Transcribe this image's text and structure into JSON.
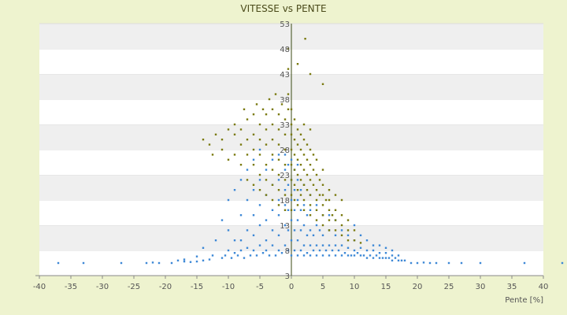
{
  "chart_data": {
    "type": "scatter",
    "title": "VITESSE vs PENTE",
    "xlabel": "Pente [%]",
    "ylabel": "",
    "xlim": [
      -40,
      40
    ],
    "ylim": [
      3,
      53
    ],
    "x_ticks": [
      "-40",
      "-35",
      "-30",
      "-25",
      "-20",
      "-15",
      "-10",
      "-5",
      "0",
      "5",
      "10",
      "15",
      "20",
      "25",
      "30",
      "35",
      "40"
    ],
    "y_ticks": [
      "3",
      "8",
      "13",
      "18",
      "23",
      "28",
      "33",
      "38",
      "43",
      "48",
      "53"
    ],
    "grid": "horizontal-bands",
    "legend": "none",
    "series": [
      {
        "color": "#3d88d6",
        "points": [
          [
            -37,
            5.5
          ],
          [
            -33,
            5.5
          ],
          [
            -27,
            5.5
          ],
          [
            -23,
            5.5
          ],
          [
            -22,
            5.6
          ],
          [
            -21,
            5.5
          ],
          [
            -19,
            5.5
          ],
          [
            -18,
            6
          ],
          [
            -17,
            5.8
          ],
          [
            -17,
            6.2
          ],
          [
            -16,
            5.7
          ],
          [
            -15,
            5.8
          ],
          [
            -15,
            6.8
          ],
          [
            -14,
            6
          ],
          [
            -14,
            8.5
          ],
          [
            -13,
            6.2
          ],
          [
            -12.5,
            7
          ],
          [
            -12,
            10
          ],
          [
            -11,
            6.5
          ],
          [
            -11,
            14
          ],
          [
            -10.5,
            7
          ],
          [
            -10,
            8
          ],
          [
            -10,
            12
          ],
          [
            -10,
            18
          ],
          [
            -9.5,
            6.5
          ],
          [
            -9,
            7.5
          ],
          [
            -9,
            10
          ],
          [
            -9,
            20
          ],
          [
            -8.5,
            7
          ],
          [
            -8,
            8
          ],
          [
            -8,
            10
          ],
          [
            -8,
            15
          ],
          [
            -8,
            22
          ],
          [
            -7.5,
            6.5
          ],
          [
            -7,
            8.5
          ],
          [
            -7,
            12
          ],
          [
            -7,
            18
          ],
          [
            -7,
            24
          ],
          [
            -6.5,
            7
          ],
          [
            -6,
            8
          ],
          [
            -6,
            11
          ],
          [
            -6,
            15
          ],
          [
            -6,
            20
          ],
          [
            -6,
            26
          ],
          [
            -5.5,
            7
          ],
          [
            -5,
            9
          ],
          [
            -5,
            13
          ],
          [
            -5,
            17
          ],
          [
            -5,
            22
          ],
          [
            -5,
            28
          ],
          [
            -4.5,
            7.5
          ],
          [
            -4,
            8
          ],
          [
            -4,
            10
          ],
          [
            -4,
            14
          ],
          [
            -4,
            19
          ],
          [
            -4,
            24
          ],
          [
            -3.5,
            7
          ],
          [
            -3,
            9
          ],
          [
            -3,
            12
          ],
          [
            -3,
            16
          ],
          [
            -3,
            21
          ],
          [
            -3,
            26
          ],
          [
            -2.5,
            7
          ],
          [
            -2,
            8
          ],
          [
            -2,
            11
          ],
          [
            -2,
            15
          ],
          [
            -2,
            18
          ],
          [
            -2,
            22
          ],
          [
            -2,
            27
          ],
          [
            -1.5,
            7.5
          ],
          [
            -1,
            9
          ],
          [
            -1,
            13
          ],
          [
            -1,
            17
          ],
          [
            -1,
            20
          ],
          [
            -1,
            24
          ],
          [
            -1,
            27
          ],
          [
            -0.5,
            8
          ],
          [
            -0.5,
            12
          ],
          [
            -0.5,
            16
          ],
          [
            -0.5,
            21
          ],
          [
            -0.5,
            25
          ],
          [
            0,
            7
          ],
          [
            0,
            10
          ],
          [
            0,
            14
          ],
          [
            0,
            18
          ],
          [
            0,
            22
          ],
          [
            0,
            26
          ],
          [
            0.5,
            8
          ],
          [
            0.5,
            12
          ],
          [
            0.5,
            16
          ],
          [
            0.5,
            20
          ],
          [
            0.5,
            24
          ],
          [
            1,
            7
          ],
          [
            1,
            10
          ],
          [
            1,
            14
          ],
          [
            1,
            18
          ],
          [
            1,
            22
          ],
          [
            1,
            25
          ],
          [
            1.5,
            8
          ],
          [
            1.5,
            12
          ],
          [
            1.5,
            16
          ],
          [
            1.5,
            20
          ],
          [
            2,
            7
          ],
          [
            2,
            9
          ],
          [
            2,
            13
          ],
          [
            2,
            17
          ],
          [
            2,
            21
          ],
          [
            2.5,
            7.5
          ],
          [
            2.5,
            11
          ],
          [
            2.5,
            15
          ],
          [
            3,
            7
          ],
          [
            3,
            9
          ],
          [
            3,
            12
          ],
          [
            3,
            16
          ],
          [
            3,
            19
          ],
          [
            3.5,
            8
          ],
          [
            3.5,
            11
          ],
          [
            4,
            7
          ],
          [
            4,
            9
          ],
          [
            4,
            13
          ],
          [
            4,
            17
          ],
          [
            4.5,
            8
          ],
          [
            4.5,
            12
          ],
          [
            5,
            7
          ],
          [
            5,
            9
          ],
          [
            5,
            11
          ],
          [
            5,
            15
          ],
          [
            5.5,
            8
          ],
          [
            6,
            7
          ],
          [
            6,
            9
          ],
          [
            6,
            12
          ],
          [
            6,
            15
          ],
          [
            6.5,
            8
          ],
          [
            7,
            7
          ],
          [
            7,
            9
          ],
          [
            7,
            11
          ],
          [
            7,
            14
          ],
          [
            7.5,
            8
          ],
          [
            8,
            7
          ],
          [
            8,
            9
          ],
          [
            8,
            12
          ],
          [
            8.5,
            7.5
          ],
          [
            9,
            7
          ],
          [
            9,
            8.5
          ],
          [
            9,
            11
          ],
          [
            9.5,
            7
          ],
          [
            10,
            7
          ],
          [
            10,
            8
          ],
          [
            10,
            10
          ],
          [
            10,
            13
          ],
          [
            10.5,
            7.5
          ],
          [
            11,
            7
          ],
          [
            11,
            8.5
          ],
          [
            11,
            11
          ],
          [
            11.5,
            7
          ],
          [
            12,
            6.5
          ],
          [
            12,
            8
          ],
          [
            12,
            10
          ],
          [
            12.5,
            7
          ],
          [
            13,
            6.5
          ],
          [
            13,
            8
          ],
          [
            13,
            9
          ],
          [
            13.5,
            7
          ],
          [
            14,
            6.5
          ],
          [
            14,
            7.5
          ],
          [
            14,
            9
          ],
          [
            14.5,
            6.5
          ],
          [
            15,
            6.5
          ],
          [
            15,
            7.5
          ],
          [
            15,
            8.5
          ],
          [
            15.5,
            6.5
          ],
          [
            16,
            6
          ],
          [
            16,
            7
          ],
          [
            16,
            8
          ],
          [
            16.5,
            6.5
          ],
          [
            17,
            6
          ],
          [
            17,
            7
          ],
          [
            17.5,
            6
          ],
          [
            18,
            6
          ],
          [
            19,
            5.5
          ],
          [
            20,
            5.5
          ],
          [
            21,
            5.6
          ],
          [
            22,
            5.5
          ],
          [
            23,
            5.5
          ],
          [
            25,
            5.5
          ],
          [
            27,
            5.5
          ],
          [
            30,
            5.5
          ],
          [
            37,
            5.5
          ],
          [
            43,
            5.5
          ]
        ]
      },
      {
        "color": "#7a7a10",
        "points": [
          [
            -14,
            30
          ],
          [
            -13,
            29
          ],
          [
            -12.5,
            27
          ],
          [
            -12,
            31
          ],
          [
            -11,
            28
          ],
          [
            -11,
            30
          ],
          [
            -10,
            32
          ],
          [
            -10,
            26
          ],
          [
            -9,
            27
          ],
          [
            -9,
            31
          ],
          [
            -9,
            33
          ],
          [
            -8,
            25
          ],
          [
            -8,
            29
          ],
          [
            -8,
            32
          ],
          [
            -7.5,
            36
          ],
          [
            -7,
            22
          ],
          [
            -7,
            27
          ],
          [
            -7,
            30
          ],
          [
            -7,
            34
          ],
          [
            -6,
            21
          ],
          [
            -6,
            25
          ],
          [
            -6,
            28
          ],
          [
            -6,
            31
          ],
          [
            -6,
            35
          ],
          [
            -5.5,
            37
          ],
          [
            -5,
            20
          ],
          [
            -5,
            23
          ],
          [
            -5,
            27
          ],
          [
            -5,
            30
          ],
          [
            -5,
            33
          ],
          [
            -4.5,
            36
          ],
          [
            -4,
            19
          ],
          [
            -4,
            22
          ],
          [
            -4,
            25
          ],
          [
            -4,
            29
          ],
          [
            -4,
            32
          ],
          [
            -4,
            35
          ],
          [
            -3.5,
            38
          ],
          [
            -3,
            18
          ],
          [
            -3,
            21
          ],
          [
            -3,
            24
          ],
          [
            -3,
            27
          ],
          [
            -3,
            30
          ],
          [
            -3,
            33
          ],
          [
            -3,
            36
          ],
          [
            -2.5,
            39
          ],
          [
            -2,
            17
          ],
          [
            -2,
            20
          ],
          [
            -2,
            23
          ],
          [
            -2,
            26
          ],
          [
            -2,
            29
          ],
          [
            -2,
            32
          ],
          [
            -2,
            35
          ],
          [
            -1.5,
            37
          ],
          [
            -1,
            16
          ],
          [
            -1,
            19
          ],
          [
            -1,
            22
          ],
          [
            -1,
            25
          ],
          [
            -1,
            28
          ],
          [
            -1,
            31
          ],
          [
            -1,
            34
          ],
          [
            -0.5,
            36
          ],
          [
            -0.5,
            39
          ],
          [
            -0.5,
            44
          ],
          [
            -0.5,
            48
          ],
          [
            0,
            16
          ],
          [
            0,
            19
          ],
          [
            0,
            22
          ],
          [
            0,
            25
          ],
          [
            0,
            28
          ],
          [
            0,
            31
          ],
          [
            0,
            33
          ],
          [
            0,
            36
          ],
          [
            0.5,
            18
          ],
          [
            0.5,
            21
          ],
          [
            0.5,
            24
          ],
          [
            0.5,
            27
          ],
          [
            0.5,
            30
          ],
          [
            0.5,
            34
          ],
          [
            1,
            17
          ],
          [
            1,
            20
          ],
          [
            1,
            23
          ],
          [
            1,
            26
          ],
          [
            1,
            29
          ],
          [
            1,
            32
          ],
          [
            1,
            45
          ],
          [
            1.5,
            19
          ],
          [
            1.5,
            22
          ],
          [
            1.5,
            25
          ],
          [
            1.5,
            28
          ],
          [
            1.5,
            31
          ],
          [
            2,
            16
          ],
          [
            2,
            18
          ],
          [
            2,
            21
          ],
          [
            2,
            24
          ],
          [
            2,
            27
          ],
          [
            2,
            30
          ],
          [
            2,
            33
          ],
          [
            2.2,
            50
          ],
          [
            2.5,
            20
          ],
          [
            2.5,
            23
          ],
          [
            2.5,
            26
          ],
          [
            2.5,
            29
          ],
          [
            3,
            15
          ],
          [
            3,
            17
          ],
          [
            3,
            19
          ],
          [
            3,
            22
          ],
          [
            3,
            25
          ],
          [
            3,
            28
          ],
          [
            3,
            32
          ],
          [
            3,
            43
          ],
          [
            3.5,
            21
          ],
          [
            3.5,
            24
          ],
          [
            3.5,
            27
          ],
          [
            4,
            14
          ],
          [
            4,
            16
          ],
          [
            4,
            18
          ],
          [
            4,
            20
          ],
          [
            4,
            23
          ],
          [
            4,
            26
          ],
          [
            4.5,
            19
          ],
          [
            4.5,
            22
          ],
          [
            5,
            13
          ],
          [
            5,
            15
          ],
          [
            5,
            17
          ],
          [
            5,
            19
          ],
          [
            5,
            21
          ],
          [
            5,
            24
          ],
          [
            5,
            41
          ],
          [
            5.5,
            18
          ],
          [
            6,
            12
          ],
          [
            6,
            14
          ],
          [
            6,
            16
          ],
          [
            6,
            18
          ],
          [
            6,
            20
          ],
          [
            6.5,
            15
          ],
          [
            7,
            12
          ],
          [
            7,
            14
          ],
          [
            7,
            16
          ],
          [
            7,
            19
          ],
          [
            8,
            11
          ],
          [
            8,
            13
          ],
          [
            8,
            15
          ],
          [
            8,
            18
          ],
          [
            9,
            10
          ],
          [
            9,
            12
          ],
          [
            9,
            14
          ],
          [
            10,
            10
          ],
          [
            10,
            12
          ],
          [
            11,
            9.5
          ]
        ]
      }
    ]
  }
}
